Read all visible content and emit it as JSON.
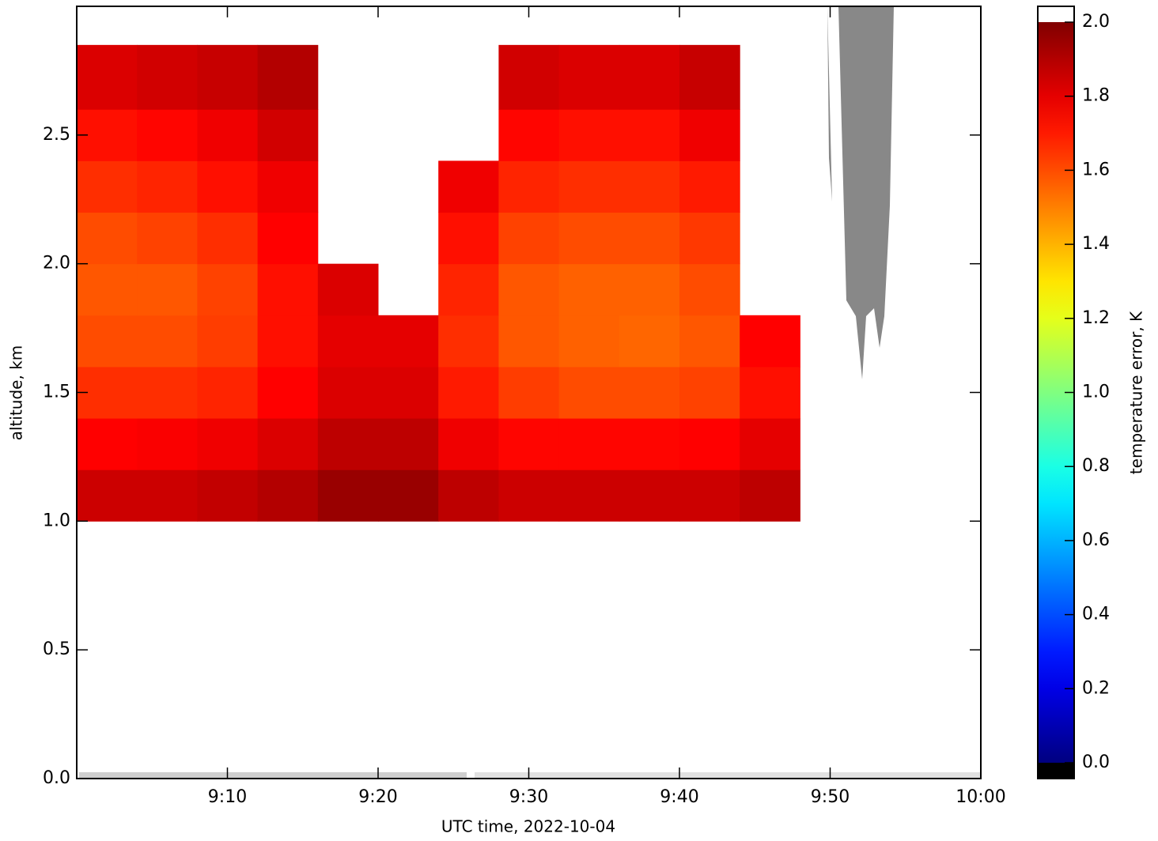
{
  "chart_data": {
    "type": "heatmap",
    "x_label": "UTC time,  2022-10-04",
    "y_label": "altitude, km",
    "colorbar_label": "temperature error, K",
    "colormap": "jet",
    "xlim": [
      540,
      600
    ],
    "xticks": [
      {
        "value": 550,
        "label": "9:10"
      },
      {
        "value": 560,
        "label": "9:20"
      },
      {
        "value": 570,
        "label": "9:30"
      },
      {
        "value": 580,
        "label": "9:40"
      },
      {
        "value": 590,
        "label": "9:50"
      },
      {
        "value": 600,
        "label": "10:00"
      }
    ],
    "ylim": [
      0,
      3.0
    ],
    "yticks": [
      {
        "value": 0,
        "label": "0.0"
      },
      0.5,
      {
        "value": 1,
        "label": "1.0"
      },
      1.5,
      {
        "value": 2,
        "label": "2.0"
      },
      2.5
    ],
    "clim": [
      0,
      2.0
    ],
    "cticks": [
      {
        "value": 0,
        "label": "0.0"
      },
      0.2,
      0.4,
      0.6,
      0.8,
      {
        "value": 1,
        "label": "1.0"
      },
      1.2,
      1.4,
      1.6,
      1.8,
      {
        "value": 2,
        "label": "2.0"
      }
    ],
    "x": [
      540,
      544,
      548,
      552,
      556,
      560,
      564,
      568,
      572,
      576,
      580,
      584,
      588,
      592,
      596,
      600
    ],
    "y": [
      1.0,
      1.2,
      1.4,
      1.6,
      1.8,
      2.0,
      2.2,
      2.4,
      2.6,
      2.85
    ],
    "values": [
      [
        1.85,
        1.85,
        1.87,
        1.9,
        1.95,
        1.95,
        1.88,
        1.85,
        1.85,
        1.85,
        1.85,
        1.88,
        null,
        null,
        null
      ],
      [
        1.75,
        1.76,
        1.78,
        1.82,
        1.88,
        1.88,
        1.78,
        1.74,
        1.74,
        1.74,
        1.75,
        1.8,
        null,
        null,
        null
      ],
      [
        1.66,
        1.66,
        1.68,
        1.75,
        1.82,
        1.82,
        1.7,
        1.63,
        1.6,
        1.6,
        1.62,
        1.72,
        null,
        null,
        null
      ],
      [
        1.6,
        1.6,
        1.63,
        1.72,
        1.8,
        1.8,
        1.66,
        1.58,
        1.56,
        1.55,
        1.58,
        1.75,
        null,
        null,
        null
      ],
      [
        1.58,
        1.58,
        1.62,
        1.72,
        1.82,
        null,
        1.68,
        1.58,
        1.56,
        1.56,
        1.6,
        null,
        null,
        null,
        null
      ],
      [
        1.6,
        1.62,
        1.66,
        1.75,
        null,
        null,
        1.72,
        1.62,
        1.6,
        1.6,
        1.64,
        null,
        null,
        null,
        null
      ],
      [
        1.66,
        1.68,
        1.72,
        1.78,
        null,
        null,
        1.78,
        1.68,
        1.66,
        1.66,
        1.7,
        null,
        null,
        null,
        null
      ],
      [
        1.72,
        1.74,
        1.78,
        1.84,
        null,
        null,
        null,
        1.74,
        1.72,
        1.72,
        1.78,
        null,
        null,
        null,
        null
      ],
      [
        1.82,
        1.84,
        1.86,
        1.9,
        null,
        null,
        null,
        1.84,
        1.82,
        1.82,
        1.86,
        null,
        null,
        null,
        null
      ]
    ]
  }
}
